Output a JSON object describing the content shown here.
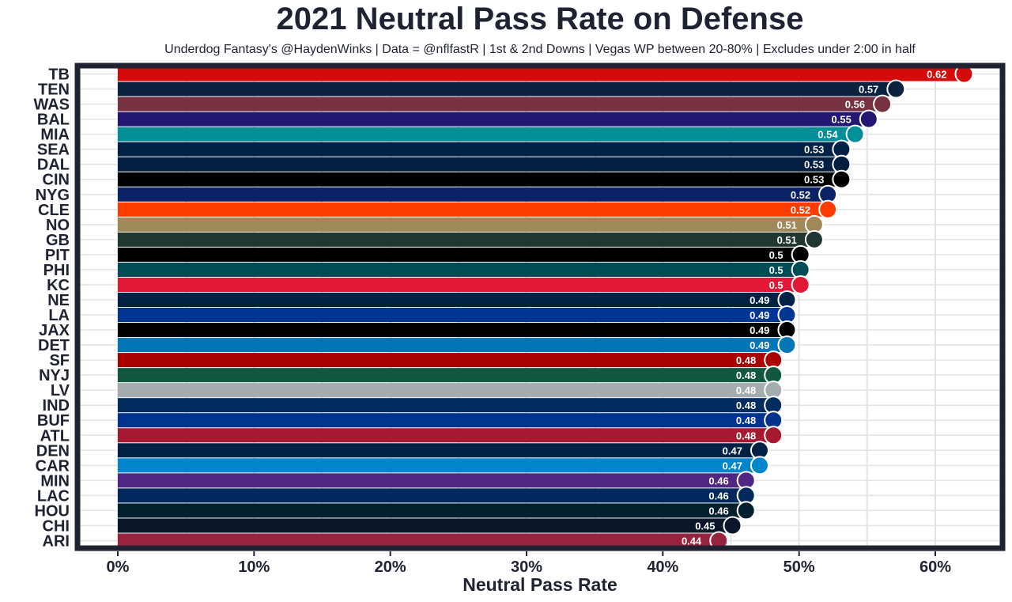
{
  "chart_data": {
    "type": "bar",
    "orientation": "horizontal",
    "title": "2021 Neutral Pass Rate on Defense",
    "subtitle": "Underdog Fantasy's @HaydenWinks | Data = @nflfastR | 1st & 2nd Downs | Vegas WP between 20-80% | Excludes under 2:00 in half",
    "xlabel": "Neutral Pass Rate",
    "ylabel": "",
    "xlim": [
      -0.03,
      0.65
    ],
    "x_ticks": [
      0,
      0.1,
      0.2,
      0.3,
      0.4,
      0.5,
      0.6
    ],
    "x_tick_labels": [
      "0%",
      "10%",
      "20%",
      "30%",
      "40%",
      "50%",
      "60%"
    ],
    "grid": true,
    "legend": "none",
    "categories": [
      "TB",
      "TEN",
      "WAS",
      "BAL",
      "MIA",
      "SEA",
      "DAL",
      "CIN",
      "NYG",
      "CLE",
      "NO",
      "GB",
      "PIT",
      "PHI",
      "KC",
      "NE",
      "LA",
      "JAX",
      "DET",
      "SF",
      "NYJ",
      "LV",
      "IND",
      "BUF",
      "ATL",
      "DEN",
      "CAR",
      "MIN",
      "LAC",
      "HOU",
      "CHI",
      "ARI"
    ],
    "values": [
      0.62,
      0.57,
      0.56,
      0.55,
      0.54,
      0.53,
      0.53,
      0.53,
      0.52,
      0.52,
      0.51,
      0.51,
      0.5,
      0.5,
      0.5,
      0.49,
      0.49,
      0.49,
      0.49,
      0.48,
      0.48,
      0.48,
      0.48,
      0.48,
      0.48,
      0.47,
      0.47,
      0.46,
      0.46,
      0.46,
      0.45,
      0.44
    ],
    "value_labels": [
      "0.62",
      "0.57",
      "0.56",
      "0.55",
      "0.54",
      "0.53",
      "0.53",
      "0.53",
      "0.52",
      "0.52",
      "0.51",
      "0.51",
      "0.5",
      "0.5",
      "0.5",
      "0.49",
      "0.49",
      "0.49",
      "0.49",
      "0.48",
      "0.48",
      "0.48",
      "0.48",
      "0.48",
      "0.48",
      "0.47",
      "0.47",
      "0.46",
      "0.46",
      "0.46",
      "0.45",
      "0.44"
    ],
    "bar_colors": [
      "#d50a0a",
      "#0c2340",
      "#773141",
      "#241773",
      "#008e97",
      "#002244",
      "#041e42",
      "#000000",
      "#0b2265",
      "#ff3c00",
      "#9f8958",
      "#203731",
      "#000000",
      "#004c54",
      "#e31837",
      "#002244",
      "#003594",
      "#000000",
      "#0076b6",
      "#aa0000",
      "#125740",
      "#a5acaf",
      "#002c5f",
      "#00338d",
      "#a71930",
      "#002244",
      "#0085ca",
      "#4f2683",
      "#002a5e",
      "#03202f",
      "#0b162a",
      "#97233f"
    ]
  },
  "colors": {
    "frame": "#1f2230",
    "grid": "#e3e3e3",
    "text": "#1f2230",
    "value_text": "#ffffff",
    "background": "#ffffff"
  }
}
